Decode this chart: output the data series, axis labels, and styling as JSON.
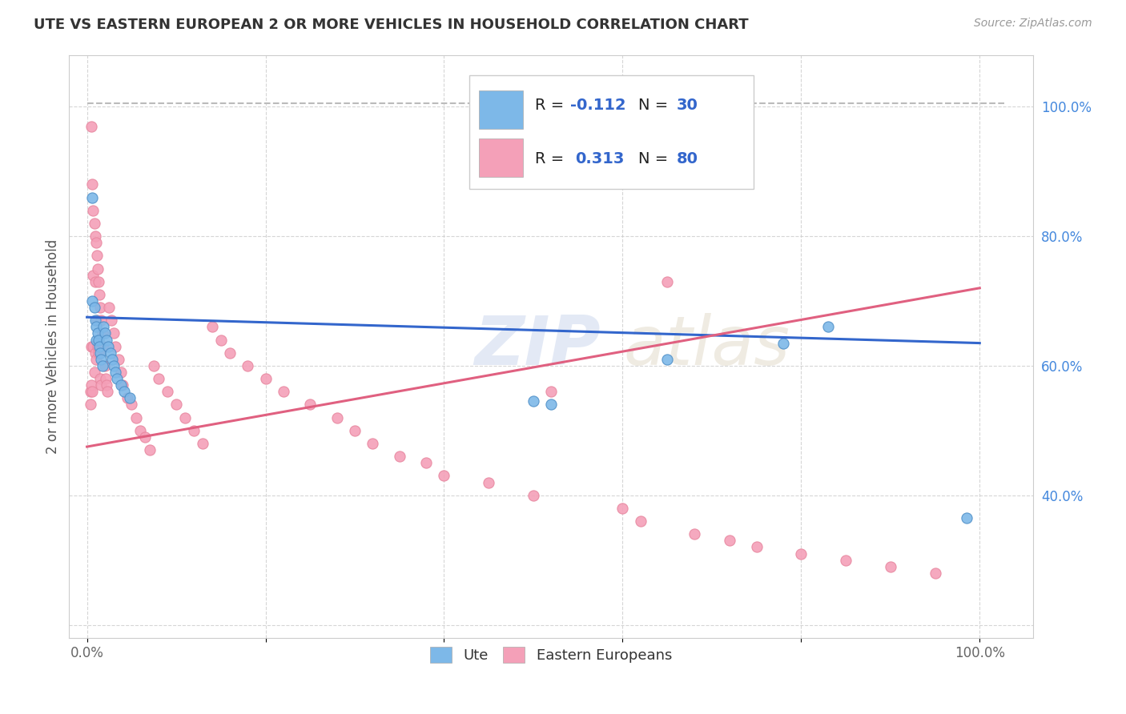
{
  "title": "UTE VS EASTERN EUROPEAN 2 OR MORE VEHICLES IN HOUSEHOLD CORRELATION CHART",
  "source": "Source: ZipAtlas.com",
  "ylabel": "2 or more Vehicles in Household",
  "blue_R": -0.112,
  "blue_N": 30,
  "pink_R": 0.313,
  "pink_N": 80,
  "legend_label_blue": "Ute",
  "legend_label_pink": "Eastern Europeans",
  "blue_color": "#7db8e8",
  "pink_color": "#f4a0b8",
  "blue_line_color": "#3366cc",
  "pink_line_color": "#e06080",
  "blue_dot_edge": "#5090c8",
  "pink_dot_edge": "#e888a0",
  "grid_color": "#cccccc",
  "ytick_color": "#4488dd",
  "xtick_color": "#666666",
  "blue_scatter_x": [
    0.006,
    0.006,
    0.008,
    0.009,
    0.01,
    0.01,
    0.012,
    0.013,
    0.014,
    0.015,
    0.016,
    0.017,
    0.018,
    0.02,
    0.022,
    0.024,
    0.026,
    0.028,
    0.03,
    0.032,
    0.034,
    0.038,
    0.042,
    0.048,
    0.5,
    0.52,
    0.65,
    0.78,
    0.83,
    0.985
  ],
  "blue_scatter_y": [
    0.86,
    0.7,
    0.69,
    0.67,
    0.66,
    0.64,
    0.65,
    0.64,
    0.63,
    0.62,
    0.61,
    0.6,
    0.66,
    0.65,
    0.64,
    0.63,
    0.62,
    0.61,
    0.6,
    0.59,
    0.58,
    0.57,
    0.56,
    0.55,
    0.545,
    0.54,
    0.61,
    0.635,
    0.66,
    0.365
  ],
  "pink_scatter_x": [
    0.004,
    0.004,
    0.005,
    0.005,
    0.005,
    0.006,
    0.006,
    0.007,
    0.007,
    0.007,
    0.008,
    0.008,
    0.009,
    0.009,
    0.009,
    0.01,
    0.01,
    0.011,
    0.011,
    0.012,
    0.012,
    0.013,
    0.013,
    0.014,
    0.015,
    0.015,
    0.016,
    0.016,
    0.017,
    0.018,
    0.02,
    0.021,
    0.022,
    0.023,
    0.025,
    0.027,
    0.03,
    0.032,
    0.035,
    0.038,
    0.04,
    0.045,
    0.05,
    0.055,
    0.06,
    0.065,
    0.07,
    0.075,
    0.08,
    0.09,
    0.1,
    0.11,
    0.12,
    0.13,
    0.14,
    0.15,
    0.16,
    0.18,
    0.2,
    0.22,
    0.25,
    0.28,
    0.3,
    0.32,
    0.35,
    0.38,
    0.4,
    0.45,
    0.5,
    0.52,
    0.6,
    0.62,
    0.65,
    0.68,
    0.72,
    0.75,
    0.8,
    0.85,
    0.9,
    0.95
  ],
  "pink_scatter_y": [
    0.56,
    0.54,
    0.97,
    0.63,
    0.57,
    0.88,
    0.56,
    0.84,
    0.74,
    0.63,
    0.82,
    0.59,
    0.8,
    0.73,
    0.62,
    0.79,
    0.61,
    0.77,
    0.67,
    0.75,
    0.63,
    0.73,
    0.62,
    0.71,
    0.69,
    0.58,
    0.67,
    0.57,
    0.65,
    0.63,
    0.6,
    0.58,
    0.57,
    0.56,
    0.69,
    0.67,
    0.65,
    0.63,
    0.61,
    0.59,
    0.57,
    0.55,
    0.54,
    0.52,
    0.5,
    0.49,
    0.47,
    0.6,
    0.58,
    0.56,
    0.54,
    0.52,
    0.5,
    0.48,
    0.66,
    0.64,
    0.62,
    0.6,
    0.58,
    0.56,
    0.54,
    0.52,
    0.5,
    0.48,
    0.46,
    0.45,
    0.43,
    0.42,
    0.4,
    0.56,
    0.38,
    0.36,
    0.73,
    0.34,
    0.33,
    0.32,
    0.31,
    0.3,
    0.29,
    0.28
  ],
  "blue_line_x0": 0.0,
  "blue_line_x1": 1.0,
  "blue_line_y0": 0.675,
  "blue_line_y1": 0.635,
  "pink_line_x0": 0.0,
  "pink_line_x1": 1.0,
  "pink_line_y0": 0.475,
  "pink_line_y1": 0.72,
  "dash_line_x0": 0.0,
  "dash_line_x1": 1.03,
  "dash_line_y0": 1.005,
  "dash_line_y1": 1.005,
  "ylim_min": 0.18,
  "ylim_max": 1.08,
  "xlim_min": -0.02,
  "xlim_max": 1.06,
  "ytick_positions": [
    0.2,
    0.4,
    0.6,
    0.8,
    1.0
  ],
  "ytick_labels": [
    "",
    "40.0%",
    "60.0%",
    "80.0%",
    "100.0%"
  ],
  "xtick_positions": [
    0.0,
    0.2,
    0.4,
    0.6,
    0.8,
    1.0
  ],
  "xtick_labels": [
    "0.0%",
    "",
    "",
    "",
    "",
    "100.0%"
  ]
}
